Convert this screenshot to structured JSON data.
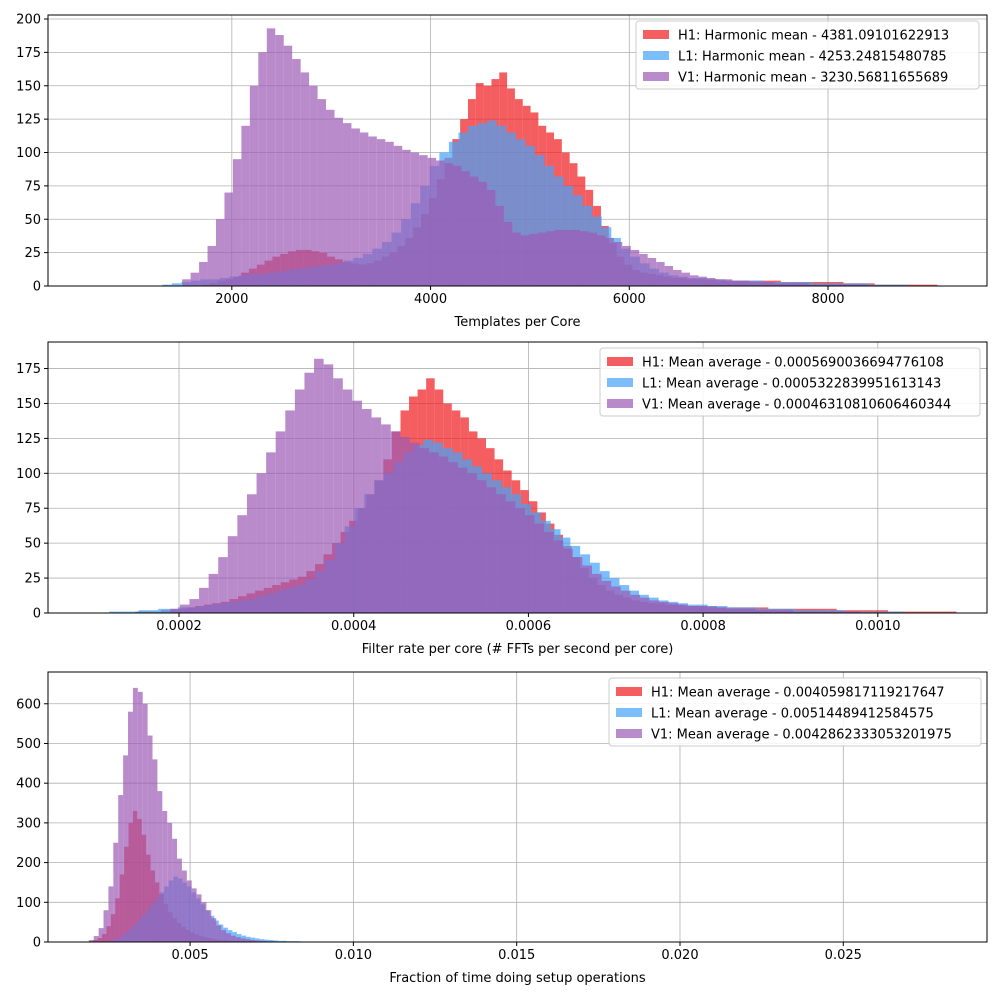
{
  "colors": {
    "H1": "#f0191c",
    "L1": "#45a3fa",
    "V1": "#9c5ab5"
  },
  "chart_data": [
    {
      "type": "histogram",
      "xlabel": "Templates per Core",
      "ylabel": "",
      "xlim": [
        150,
        9600
      ],
      "ylim": [
        0,
        203
      ],
      "xticks": [
        {
          "value": 2000,
          "label": "2000"
        },
        {
          "value": 4000,
          "label": "4000"
        },
        {
          "value": 6000,
          "label": "6000"
        },
        {
          "value": 8000,
          "label": "8000"
        }
      ],
      "yticks": [
        {
          "value": 0,
          "label": "0"
        },
        {
          "value": 25,
          "label": "25"
        },
        {
          "value": 50,
          "label": "50"
        },
        {
          "value": 75,
          "label": "75"
        },
        {
          "value": 100,
          "label": "100"
        },
        {
          "value": 125,
          "label": "125"
        },
        {
          "value": 150,
          "label": "150"
        },
        {
          "value": 175,
          "label": "175"
        },
        {
          "value": 200,
          "label": "200"
        }
      ],
      "grid": true,
      "legend_position": "top-right",
      "series": [
        {
          "key": "H1",
          "name": "H1: Harmonic mean  - 4381.09101622913",
          "x_start": 1700,
          "x_end": 9100,
          "counts": [
            1,
            2,
            4,
            5,
            7,
            10,
            13,
            16,
            19,
            22,
            24,
            26,
            27,
            27,
            26,
            25,
            22,
            20,
            18,
            17,
            16,
            17,
            19,
            22,
            25,
            30,
            36,
            44,
            54,
            66,
            80,
            96,
            110,
            125,
            140,
            152,
            150,
            155,
            160,
            148,
            140,
            135,
            130,
            120,
            115,
            110,
            100,
            92,
            82,
            72,
            60,
            45,
            32,
            22,
            16,
            12,
            10,
            9,
            8,
            7,
            6,
            6,
            5,
            5,
            5,
            5,
            4,
            4,
            4,
            4,
            4,
            4,
            4,
            4,
            3,
            3,
            3,
            3,
            3,
            3,
            3,
            3,
            2,
            2,
            2,
            2,
            1,
            1,
            1,
            1,
            1,
            1,
            1,
            1
          ]
        },
        {
          "key": "L1",
          "name": "L1: Harmonic mean  - 4253.24815480785",
          "x_start": 1300,
          "x_end": 8800,
          "counts": [
            1,
            2,
            3,
            4,
            5,
            5,
            6,
            7,
            8,
            9,
            9,
            10,
            11,
            12,
            13,
            14,
            15,
            16,
            17,
            19,
            21,
            24,
            28,
            33,
            40,
            50,
            62,
            75,
            90,
            100,
            108,
            115,
            120,
            122,
            124,
            120,
            115,
            110,
            105,
            98,
            90,
            82,
            75,
            68,
            60,
            52,
            44,
            36,
            28,
            22,
            17,
            13,
            10,
            8,
            7,
            6,
            6,
            5,
            5,
            4,
            4,
            4,
            4,
            3,
            3,
            3,
            3,
            3,
            2,
            2,
            2,
            2,
            2,
            2,
            1,
            1,
            1,
            1
          ]
        },
        {
          "key": "V1",
          "name": "V1: Harmonic mean  - 3230.56811655689",
          "x_start": 1500,
          "x_end": 8400,
          "counts": [
            5,
            10,
            18,
            30,
            50,
            70,
            95,
            120,
            150,
            175,
            193,
            188,
            180,
            170,
            160,
            150,
            140,
            132,
            126,
            122,
            118,
            115,
            112,
            110,
            108,
            105,
            102,
            100,
            98,
            96,
            94,
            92,
            90,
            86,
            82,
            78,
            72,
            60,
            48,
            40,
            38,
            39,
            40,
            41,
            42,
            42,
            42,
            41,
            40,
            38,
            36,
            33,
            30,
            27,
            24,
            21,
            18,
            15,
            12,
            10,
            8,
            7,
            6,
            5,
            5,
            4,
            4,
            3,
            3,
            3,
            2,
            2,
            2,
            2,
            1,
            1,
            1,
            1,
            1,
            1,
            1
          ]
        }
      ]
    },
    {
      "type": "histogram",
      "xlabel": "Filter rate per core (# FFTs per second per core)",
      "ylabel": "",
      "xlim": [
        5e-05,
        0.001125
      ],
      "ylim": [
        0,
        194
      ],
      "xticks": [
        {
          "value": 0.0002,
          "label": "0.0002"
        },
        {
          "value": 0.0004,
          "label": "0.0004"
        },
        {
          "value": 0.0006,
          "label": "0.0006"
        },
        {
          "value": 0.0008,
          "label": "0.0008"
        },
        {
          "value": 0.001,
          "label": "0.0010"
        }
      ],
      "yticks": [
        {
          "value": 0,
          "label": "0"
        },
        {
          "value": 25,
          "label": "25"
        },
        {
          "value": 50,
          "label": "50"
        },
        {
          "value": 75,
          "label": "75"
        },
        {
          "value": 100,
          "label": "100"
        },
        {
          "value": 125,
          "label": "125"
        },
        {
          "value": 150,
          "label": "150"
        },
        {
          "value": 175,
          "label": "175"
        }
      ],
      "grid": true,
      "legend_position": "top-right",
      "series": [
        {
          "key": "H1",
          "name": "H1: Mean average - 0.0005690036694776108",
          "x_start": 0.00015,
          "x_end": 0.00109,
          "counts": [
            1,
            1,
            1,
            2,
            2,
            3,
            4,
            5,
            6,
            7,
            8,
            10,
            12,
            14,
            16,
            18,
            20,
            22,
            24,
            26,
            30,
            35,
            42,
            50,
            58,
            66,
            75,
            85,
            95,
            110,
            130,
            145,
            155,
            160,
            168,
            160,
            150,
            145,
            140,
            130,
            125,
            118,
            110,
            102,
            95,
            88,
            80,
            72,
            64,
            56,
            48,
            40,
            32,
            25,
            20,
            16,
            13,
            11,
            9,
            8,
            7,
            7,
            6,
            6,
            5,
            5,
            5,
            5,
            4,
            4,
            4,
            4,
            4,
            4,
            3,
            3,
            3,
            3,
            3,
            3,
            3,
            3,
            2,
            2,
            2,
            2,
            2,
            2,
            1,
            1,
            1,
            1,
            1,
            1,
            1,
            1
          ]
        },
        {
          "key": "L1",
          "name": "L1: Mean average - 0.0005322839951613143",
          "x_start": 0.00012,
          "x_end": 0.00103,
          "counts": [
            1,
            1,
            1,
            2,
            2,
            3,
            3,
            4,
            4,
            5,
            6,
            7,
            8,
            9,
            10,
            12,
            14,
            16,
            18,
            20,
            24,
            30,
            38,
            50,
            62,
            75,
            85,
            95,
            100,
            108,
            115,
            120,
            124,
            122,
            118,
            115,
            110,
            105,
            100,
            95,
            90,
            85,
            78,
            72,
            66,
            60,
            54,
            48,
            42,
            36,
            30,
            25,
            20,
            16,
            13,
            11,
            9,
            8,
            7,
            6,
            6,
            5,
            5,
            4,
            4,
            4,
            3,
            3,
            3,
            3,
            2,
            2,
            2,
            2,
            2,
            1,
            1,
            1,
            1,
            1,
            1
          ]
        },
        {
          "key": "V1",
          "name": "V1: Mean average - 0.00046310810606460344",
          "x_start": 0.00019,
          "x_end": 0.00098,
          "counts": [
            3,
            6,
            10,
            18,
            28,
            40,
            55,
            70,
            85,
            100,
            115,
            130,
            145,
            160,
            172,
            182,
            178,
            168,
            160,
            152,
            146,
            140,
            135,
            130,
            126,
            122,
            118,
            115,
            112,
            108,
            104,
            100,
            95,
            90,
            85,
            80,
            75,
            70,
            64,
            58,
            52,
            46,
            40,
            34,
            28,
            23,
            19,
            16,
            13,
            11,
            9,
            8,
            7,
            6,
            5,
            5,
            4,
            4,
            3,
            3,
            3,
            2,
            2,
            2,
            2,
            1,
            1,
            1,
            1,
            1,
            1,
            1
          ]
        }
      ]
    },
    {
      "type": "histogram",
      "xlabel": "Fraction of time doing setup operations",
      "ylabel": "",
      "xlim": [
        0.00065,
        0.0294
      ],
      "ylim": [
        0,
        680
      ],
      "xticks": [
        {
          "value": 0.005,
          "label": "0.005"
        },
        {
          "value": 0.01,
          "label": "0.010"
        },
        {
          "value": 0.015,
          "label": "0.015"
        },
        {
          "value": 0.02,
          "label": "0.020"
        },
        {
          "value": 0.025,
          "label": "0.025"
        }
      ],
      "yticks": [
        {
          "value": 0,
          "label": "0"
        },
        {
          "value": 100,
          "label": "100"
        },
        {
          "value": 200,
          "label": "200"
        },
        {
          "value": 300,
          "label": "300"
        },
        {
          "value": 400,
          "label": "400"
        },
        {
          "value": 500,
          "label": "500"
        },
        {
          "value": 600,
          "label": "600"
        }
      ],
      "grid": true,
      "legend_position": "top-right",
      "series": [
        {
          "key": "H1",
          "name": "H1: Mean average - 0.004059817119217647",
          "x_start": 0.0019,
          "x_end": 0.0073,
          "counts": [
            2,
            5,
            10,
            20,
            40,
            70,
            110,
            170,
            240,
            300,
            330,
            310,
            270,
            220,
            180,
            150,
            120,
            95,
            75,
            60,
            48,
            38,
            30,
            24,
            19,
            15,
            12,
            10,
            8,
            6,
            5,
            4,
            3,
            3,
            2,
            2,
            2,
            1,
            1,
            1
          ]
        },
        {
          "key": "L1",
          "name": "L1: Mean average - 0.00514489412584575",
          "x_start": 0.0024,
          "x_end": 0.0088,
          "counts": [
            2,
            4,
            8,
            14,
            22,
            32,
            42,
            55,
            68,
            80,
            95,
            110,
            125,
            140,
            155,
            165,
            160,
            150,
            140,
            125,
            110,
            95,
            80,
            66,
            54,
            44,
            36,
            30,
            25,
            20,
            16,
            13,
            11,
            9,
            7,
            6,
            5,
            4,
            3,
            3,
            2,
            2,
            2,
            1,
            1,
            1
          ]
        },
        {
          "key": "V1",
          "name": "V1: Mean average - 0.0042862333053201975",
          "x_start": 0.0019,
          "x_end": 0.0088,
          "counts": [
            5,
            15,
            35,
            80,
            140,
            250,
            370,
            470,
            580,
            640,
            630,
            600,
            520,
            460,
            380,
            330,
            300,
            260,
            210,
            180,
            155,
            135,
            120,
            100,
            80,
            60,
            42,
            30,
            22,
            16,
            12,
            9,
            7,
            5,
            4,
            3,
            2,
            2,
            1,
            1,
            1,
            1,
            1,
            1,
            1,
            1
          ]
        }
      ]
    }
  ]
}
